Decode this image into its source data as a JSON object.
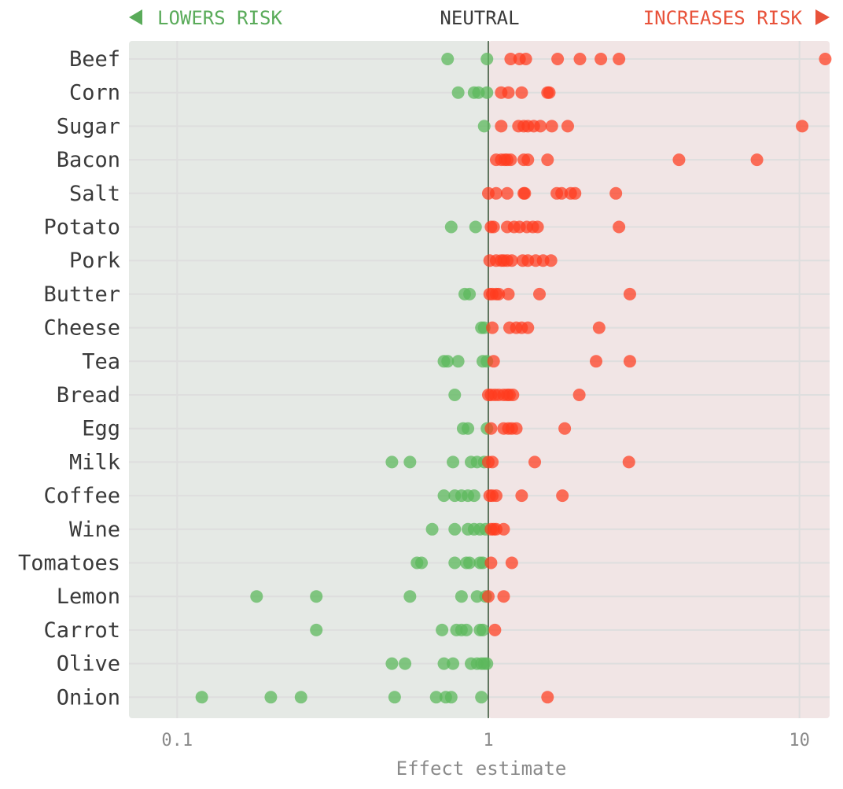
{
  "header": {
    "left_label": "LOWERS RISK",
    "center_label": "NEUTRAL",
    "right_label": "INCREASES RISK"
  },
  "colors": {
    "lower_zone": "#e5e9e5",
    "higher_zone": "#f1e5e5",
    "lower_point": "#5cb85c",
    "higher_point": "#ff3b1f",
    "lower_text": "#5aab5a",
    "higher_text": "#e8523a",
    "neutral_line": "#2f4f2f",
    "grid": "#dedede"
  },
  "chart_data": {
    "type": "scatter",
    "xscale": "log",
    "xlim": [
      0.07,
      12.5
    ],
    "xticks": [
      {
        "value": 0.1,
        "label": "0.1"
      },
      {
        "value": 1,
        "label": "1"
      },
      {
        "value": 10,
        "label": "10"
      }
    ],
    "xlabel": "Effect estimate",
    "neutral_value": 1,
    "grid": true,
    "categories": [
      "Beef",
      "Corn",
      "Sugar",
      "Bacon",
      "Salt",
      "Potato",
      "Pork",
      "Butter",
      "Cheese",
      "Tea",
      "Bread",
      "Egg",
      "Milk",
      "Coffee",
      "Wine",
      "Tomatoes",
      "Lemon",
      "Carrot",
      "Olive",
      "Onion"
    ],
    "values": [
      [
        0.74,
        0.99,
        1.18,
        1.26,
        1.32,
        1.67,
        1.97,
        2.3,
        2.63,
        12.1
      ],
      [
        0.8,
        0.9,
        0.93,
        0.99,
        1.1,
        1.16,
        1.28,
        1.55,
        1.57
      ],
      [
        0.97,
        1.1,
        1.25,
        1.3,
        1.34,
        1.4,
        1.47,
        1.6,
        1.8,
        10.2
      ],
      [
        1.06,
        1.1,
        1.13,
        1.15,
        1.18,
        1.3,
        1.34,
        1.55,
        4.1,
        7.3
      ],
      [
        1.0,
        1.06,
        1.15,
        1.3,
        1.31,
        1.66,
        1.72,
        1.84,
        1.9,
        2.57
      ],
      [
        0.76,
        0.91,
        1.02,
        1.04,
        1.15,
        1.21,
        1.26,
        1.33,
        1.39,
        1.44,
        2.63
      ],
      [
        1.01,
        1.06,
        1.1,
        1.12,
        1.15,
        1.19,
        1.29,
        1.34,
        1.42,
        1.5,
        1.59
      ],
      [
        0.84,
        0.87,
        1.01,
        1.03,
        1.06,
        1.08,
        1.16,
        1.46,
        2.85
      ],
      [
        0.95,
        0.97,
        1.03,
        1.17,
        1.23,
        1.28,
        1.34,
        2.27
      ],
      [
        0.72,
        0.74,
        0.8,
        0.96,
        0.99,
        1.04,
        2.22,
        2.85
      ],
      [
        0.78,
        1.0,
        1.02,
        1.05,
        1.08,
        1.12,
        1.15,
        1.17,
        1.2,
        1.96
      ],
      [
        0.83,
        0.86,
        0.99,
        1.02,
        1.12,
        1.16,
        1.19,
        1.23,
        1.76
      ],
      [
        0.49,
        0.56,
        0.77,
        0.88,
        0.92,
        0.97,
        1.0,
        1.03,
        1.41,
        2.83
      ],
      [
        0.72,
        0.78,
        0.82,
        0.86,
        0.9,
        1.01,
        1.03,
        1.06,
        1.28,
        1.73
      ],
      [
        0.66,
        0.78,
        0.86,
        0.9,
        0.94,
        0.98,
        1.02,
        1.04,
        1.06,
        1.12
      ],
      [
        0.59,
        0.61,
        0.78,
        0.85,
        0.87,
        0.94,
        0.96,
        1.02,
        1.19
      ],
      [
        0.18,
        0.28,
        0.56,
        0.82,
        0.92,
        0.98,
        1.0,
        1.12
      ],
      [
        0.28,
        0.71,
        0.79,
        0.82,
        0.85,
        0.94,
        0.96,
        1.05
      ],
      [
        0.49,
        0.54,
        0.72,
        0.77,
        0.88,
        0.92,
        0.95,
        0.97,
        0.99
      ],
      [
        0.12,
        0.2,
        0.25,
        0.5,
        0.68,
        0.73,
        0.76,
        0.95,
        1.55
      ]
    ]
  }
}
